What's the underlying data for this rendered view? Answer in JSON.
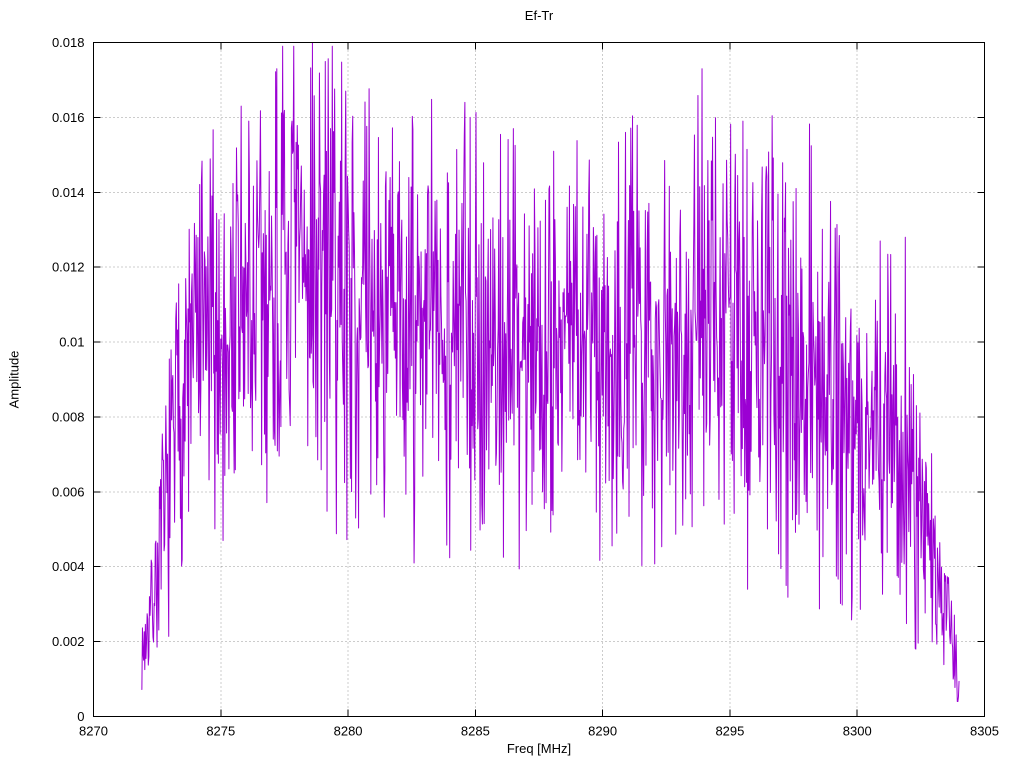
{
  "page": {
    "background": "#ffffff"
  },
  "chart_data": {
    "type": "line",
    "title": "Ef-Tr",
    "xlabel": "Freq [MHz]",
    "ylabel": "Amplitude",
    "xlim": [
      8270,
      8305
    ],
    "ylim": [
      0,
      0.018
    ],
    "grid": true,
    "legend": "none",
    "x_ticks": [
      8270,
      8275,
      8280,
      8285,
      8290,
      8295,
      8300,
      8305
    ],
    "x_tick_labels": [
      "8270",
      "8275",
      "8280",
      "8285",
      "8290",
      "8295",
      "8300",
      "8305"
    ],
    "y_ticks": [
      0,
      0.002,
      0.004,
      0.006,
      0.008,
      0.01,
      0.012,
      0.014,
      0.016,
      0.018
    ],
    "y_tick_labels": [
      "0",
      "0.002",
      "0.004",
      "0.006",
      "0.008",
      "0.01",
      "0.012",
      "0.014",
      "0.016",
      "0.018"
    ],
    "grid_color": "#9a9a9a",
    "border_color": "#000000",
    "series": [
      {
        "name": "Ef-Tr",
        "color": "#9b00d3",
        "x_start": 8271.9,
        "x_end": 8304.0,
        "samples": 1400,
        "seed": 7,
        "note": "dense noise-like amplitude spectrum; envelope and notable extrema estimated from plot",
        "envelope": {
          "x": [
            8271.9,
            8272.3,
            8272.8,
            8273.3,
            8274.0,
            8275.0,
            8276.0,
            8277.0,
            8278.0,
            8279.0,
            8280.0,
            8281.0,
            8282.0,
            8283.0,
            8284.0,
            8285.0,
            8286.0,
            8287.0,
            8288.0,
            8289.0,
            8290.0,
            8291.0,
            8292.0,
            8293.0,
            8294.0,
            8295.0,
            8296.0,
            8297.0,
            8298.0,
            8299.0,
            8300.0,
            8301.0,
            8302.0,
            8302.6,
            8303.2,
            8303.7,
            8304.0
          ],
          "mean": [
            0.0016,
            0.003,
            0.0052,
            0.008,
            0.01,
            0.0102,
            0.0106,
            0.0112,
            0.012,
            0.0118,
            0.0114,
            0.0108,
            0.0104,
            0.0108,
            0.0102,
            0.0104,
            0.01,
            0.01,
            0.0104,
            0.0104,
            0.01,
            0.0104,
            0.01,
            0.0102,
            0.0108,
            0.0102,
            0.0098,
            0.0098,
            0.0096,
            0.009,
            0.0076,
            0.008,
            0.0064,
            0.005,
            0.0036,
            0.0022,
            0.0008
          ],
          "spread": [
            0.001,
            0.0022,
            0.004,
            0.0055,
            0.0062,
            0.0068,
            0.0075,
            0.0075,
            0.0078,
            0.0078,
            0.0076,
            0.007,
            0.007,
            0.007,
            0.007,
            0.0075,
            0.007,
            0.007,
            0.007,
            0.007,
            0.007,
            0.007,
            0.007,
            0.007,
            0.0075,
            0.0072,
            0.007,
            0.0074,
            0.0076,
            0.007,
            0.006,
            0.0066,
            0.0056,
            0.0046,
            0.003,
            0.002,
            0.0008
          ]
        },
        "peaks": [
          [
            8275.8,
            0.0163
          ],
          [
            8276.1,
            0.0159
          ],
          [
            8277.2,
            0.0173
          ],
          [
            8278.6,
            0.018
          ],
          [
            8279.3,
            0.0157
          ],
          [
            8279.9,
            0.0167
          ],
          [
            8280.6,
            0.0143
          ],
          [
            8284.6,
            0.0164
          ],
          [
            8284.8,
            0.016
          ],
          [
            8286.5,
            0.0157
          ],
          [
            8288.6,
            0.0136
          ],
          [
            8290.9,
            0.0156
          ],
          [
            8293.9,
            0.0173
          ],
          [
            8295.5,
            0.0159
          ],
          [
            8297.6,
            0.0141
          ],
          [
            8300.9,
            0.0127
          ],
          [
            8301.9,
            0.0128
          ],
          [
            8275.1,
            0.0047
          ],
          [
            8280.3,
            0.0053
          ],
          [
            8282.6,
            0.0041
          ],
          [
            8288.0,
            0.0055
          ],
          [
            8295.7,
            0.0034
          ],
          [
            8299.8,
            0.0032
          ],
          [
            8302.3,
            0.0018
          ],
          [
            8303.95,
            0.0004
          ]
        ]
      }
    ]
  }
}
